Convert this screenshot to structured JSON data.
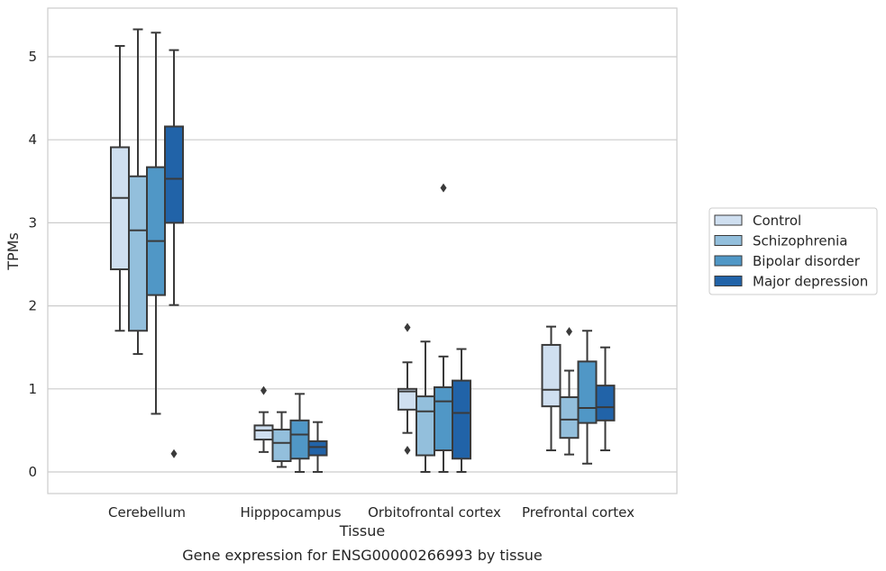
{
  "chart_data": {
    "type": "box",
    "title": "",
    "caption": "Gene expression for ENSG00000266993 by tissue",
    "xlabel": "Tissue",
    "ylabel": "TPMs",
    "ylim": [
      -0.25,
      5.6
    ],
    "yticks": [
      0,
      1,
      2,
      3,
      4,
      5
    ],
    "grid": "horizontal",
    "legend_position": "right",
    "categories": [
      "Cerebellum",
      "Hipppocampus",
      "Orbitofrontal cortex",
      "Prefrontal cortex"
    ],
    "series": [
      {
        "name": "Control",
        "color": "#cfdff0",
        "boxes": [
          {
            "whislo": 1.7,
            "q1": 2.44,
            "med": 3.3,
            "q3": 3.91,
            "whishi": 5.13,
            "fliers": []
          },
          {
            "whislo": 0.24,
            "q1": 0.39,
            "med": 0.5,
            "q3": 0.56,
            "whishi": 0.72,
            "fliers": [
              0.98
            ]
          },
          {
            "whislo": 0.47,
            "q1": 0.75,
            "med": 0.97,
            "q3": 1.0,
            "whishi": 1.32,
            "fliers": [
              1.74,
              0.26
            ]
          },
          {
            "whislo": 0.26,
            "q1": 0.79,
            "med": 0.99,
            "q3": 1.53,
            "whishi": 1.75,
            "fliers": []
          }
        ]
      },
      {
        "name": "Schizophrenia",
        "color": "#93bfdc",
        "boxes": [
          {
            "whislo": 1.42,
            "q1": 1.7,
            "med": 2.91,
            "q3": 3.56,
            "whishi": 5.33,
            "fliers": []
          },
          {
            "whislo": 0.06,
            "q1": 0.13,
            "med": 0.35,
            "q3": 0.51,
            "whishi": 0.72,
            "fliers": []
          },
          {
            "whislo": 0.0,
            "q1": 0.2,
            "med": 0.73,
            "q3": 0.91,
            "whishi": 1.57,
            "fliers": []
          },
          {
            "whislo": 0.21,
            "q1": 0.41,
            "med": 0.63,
            "q3": 0.9,
            "whishi": 1.22,
            "fliers": [
              1.69
            ]
          }
        ]
      },
      {
        "name": "Bipolar disorder",
        "color": "#5097c6",
        "boxes": [
          {
            "whislo": 0.7,
            "q1": 2.13,
            "med": 2.78,
            "q3": 3.67,
            "whishi": 5.29,
            "fliers": []
          },
          {
            "whislo": 0.0,
            "q1": 0.16,
            "med": 0.45,
            "q3": 0.62,
            "whishi": 0.94,
            "fliers": []
          },
          {
            "whislo": 0.0,
            "q1": 0.26,
            "med": 0.85,
            "q3": 1.02,
            "whishi": 1.39,
            "fliers": [
              3.42
            ]
          },
          {
            "whislo": 0.1,
            "q1": 0.59,
            "med": 0.77,
            "q3": 1.33,
            "whishi": 1.7,
            "fliers": []
          }
        ]
      },
      {
        "name": "Major depression",
        "color": "#2163a8",
        "boxes": [
          {
            "whislo": 2.01,
            "q1": 3.0,
            "med": 3.53,
            "q3": 4.16,
            "whishi": 5.08,
            "fliers": [
              0.22
            ]
          },
          {
            "whislo": 0.0,
            "q1": 0.2,
            "med": 0.3,
            "q3": 0.37,
            "whishi": 0.6,
            "fliers": []
          },
          {
            "whislo": 0.0,
            "q1": 0.16,
            "med": 0.71,
            "q3": 1.1,
            "whishi": 1.48,
            "fliers": []
          },
          {
            "whislo": 0.26,
            "q1": 0.62,
            "med": 0.78,
            "q3": 1.04,
            "whishi": 1.5,
            "fliers": []
          }
        ]
      }
    ]
  },
  "colors": {
    "edge": "#3a3a3a",
    "grid": "#cccccc",
    "frame": "#cccccc"
  }
}
